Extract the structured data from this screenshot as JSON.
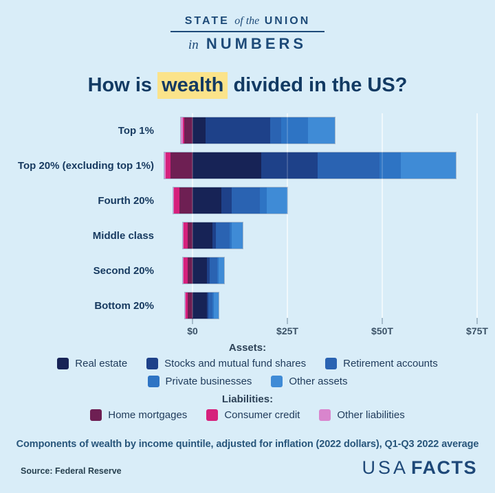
{
  "header": {
    "line1_a": "STATE",
    "line1_b": "of the",
    "line1_c": "UNION",
    "line2_a": "in",
    "line2_b": "NUMBERS"
  },
  "title": {
    "prefix": "How is",
    "highlight": "wealth",
    "suffix": "divided in the US?",
    "highlight_color": "#fbe38a"
  },
  "chart_data": {
    "type": "bar",
    "orientation": "horizontal",
    "stacked": true,
    "unit": "trillions of 2022 dollars",
    "categories": [
      "Top 1%",
      "Top 20% (excluding top 1%)",
      "Fourth 20%",
      "Middle class",
      "Second 20%",
      "Bottom 20%"
    ],
    "series": [
      {
        "name": "Real estate",
        "group": "assets",
        "color": "#172356",
        "values": [
          3.5,
          18.1,
          7.6,
          5.3,
          3.8,
          3.8
        ]
      },
      {
        "name": "Stocks and mutual fund shares",
        "group": "assets",
        "color": "#1e4189",
        "values": [
          17.0,
          14.9,
          2.7,
          0.9,
          0.7,
          0.3
        ]
      },
      {
        "name": "Retirement accounts",
        "group": "assets",
        "color": "#2a63b2",
        "values": [
          2.8,
          16.3,
          7.4,
          3.6,
          2.0,
          1.2
        ]
      },
      {
        "name": "Private businesses",
        "group": "assets",
        "color": "#2e74c4",
        "values": [
          7.2,
          5.6,
          1.8,
          0.6,
          0.4,
          0.3
        ]
      },
      {
        "name": "Other assets",
        "group": "assets",
        "color": "#3f8bd6",
        "values": [
          7.0,
          14.5,
          5.5,
          2.8,
          1.4,
          1.3
        ]
      },
      {
        "name": "Home mortgages",
        "group": "liabilities",
        "color": "#6e1f53",
        "values": [
          2.2,
          5.8,
          3.4,
          1.3,
          1.3,
          1.2
        ]
      },
      {
        "name": "Consumer credit",
        "group": "liabilities",
        "color": "#d6217c",
        "values": [
          0.4,
          1.3,
          1.4,
          1.0,
          1.0,
          0.7
        ]
      },
      {
        "name": "Other liabilities",
        "group": "liabilities",
        "color": "#d985cd",
        "values": [
          0.4,
          0.4,
          0.3,
          0.2,
          0.2,
          0.1
        ]
      }
    ],
    "x_axis": {
      "ticks": [
        {
          "label": "$0",
          "value": 0
        },
        {
          "label": "$25T",
          "value": 25
        },
        {
          "label": "$50T",
          "value": 50
        },
        {
          "label": "$75T",
          "value": 75
        }
      ],
      "range_trillions": [
        -8,
        78
      ],
      "grid": "vertical"
    },
    "legend_position": "bottom"
  },
  "legend": {
    "assets_header": "Assets:",
    "liabilities_header": "Liabilities:"
  },
  "footer": {
    "caption": "Components of wealth by income quintile, adjusted for inflation (2022 dollars), Q1-Q3 2022 average",
    "source": "Source: Federal Reserve",
    "logo_part1": "USA",
    "logo_part2": "FACTS"
  }
}
